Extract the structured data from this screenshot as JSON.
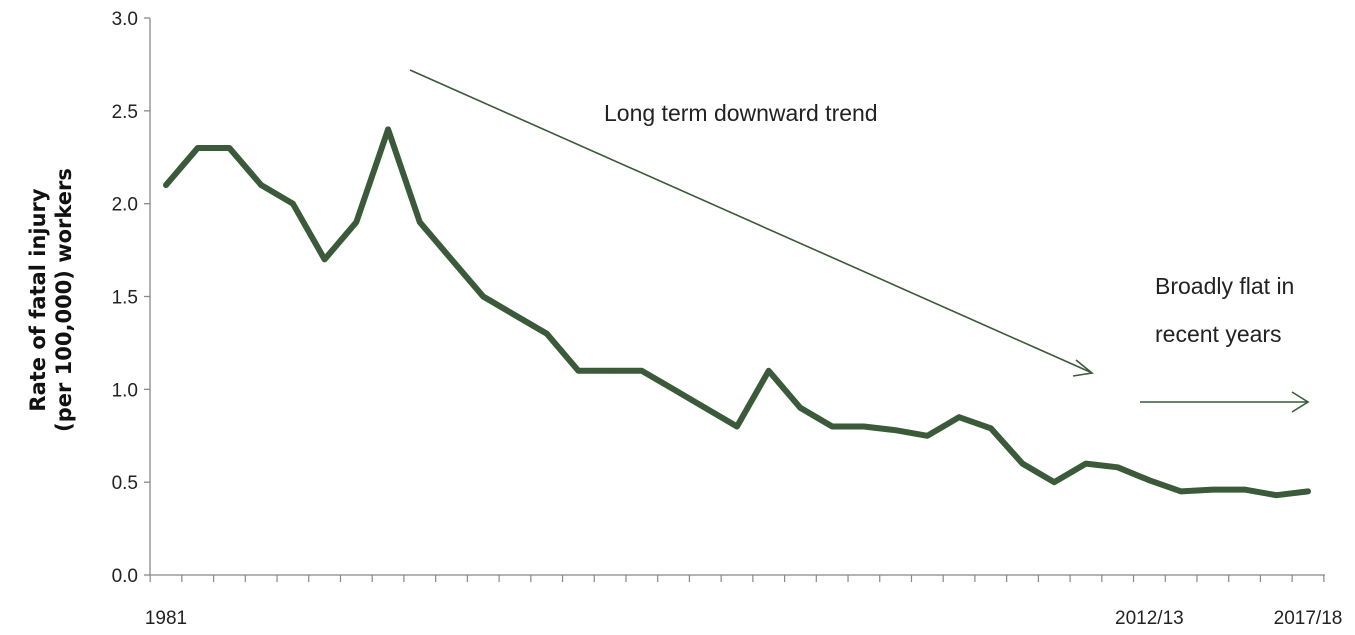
{
  "chart_data": {
    "type": "line",
    "title": "",
    "ylabel_lines": [
      "Rate of fatal injury",
      "(per 100,000)  workers"
    ],
    "xlabel": "",
    "ylim": [
      0,
      3.0
    ],
    "yticks": [
      "0.0",
      "0.5",
      "1.0",
      "1.5",
      "2.0",
      "2.5",
      "3.0"
    ],
    "x_labels_shown": [
      {
        "index": 0,
        "label": "1981"
      },
      {
        "index": 31,
        "label": "2012/13"
      },
      {
        "index": 36,
        "label": "2017/18"
      }
    ],
    "series": [
      {
        "values": [
          2.1,
          2.3,
          2.3,
          2.1,
          2.0,
          1.7,
          1.9,
          2.4,
          1.9,
          1.7,
          1.5,
          1.4,
          1.3,
          1.1,
          1.1,
          1.1,
          1.0,
          0.9,
          0.8,
          1.1,
          0.9,
          0.8,
          0.8,
          0.78,
          0.75,
          0.85,
          0.79,
          0.6,
          0.5,
          0.6,
          0.58,
          0.51,
          0.45,
          0.46,
          0.46,
          0.43,
          0.45
        ],
        "color": "#3a5a3a"
      }
    ],
    "grid": false,
    "annotations": [
      {
        "text_lines": [
          "Long term downward trend"
        ]
      },
      {
        "text_lines": [
          "Broadly flat in",
          "recent years"
        ]
      }
    ]
  }
}
